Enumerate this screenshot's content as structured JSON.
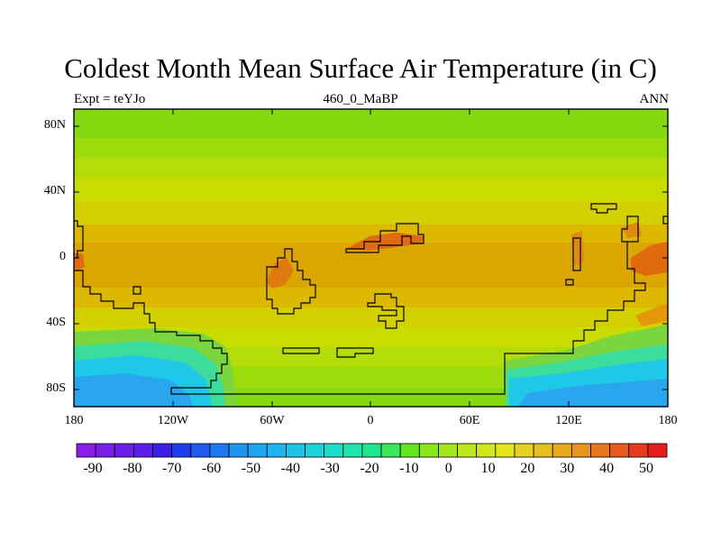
{
  "title": "Coldest Month Mean Surface Air Temperature (in C)",
  "subtitle_left": "Expt = teYJo",
  "subtitle_center": "460_0_MaBP",
  "subtitle_right": "ANN",
  "lat_labels": [
    "80N",
    "40N",
    "0",
    "40S",
    "80S"
  ],
  "lon_labels": [
    "180",
    "120W",
    "60W",
    "0",
    "60E",
    "120E",
    "180"
  ],
  "colorbar": {
    "labels": [
      "-90",
      "-80",
      "-70",
      "-60",
      "-50",
      "-40",
      "-30",
      "-20",
      "-10",
      "0",
      "10",
      "20",
      "30",
      "40",
      "50"
    ],
    "colors": [
      "#8a1ee6",
      "#7a1ee6",
      "#6a1ee6",
      "#5a1ee6",
      "#3c1ee6",
      "#1e3cf0",
      "#1e5af0",
      "#1e78f0",
      "#1e96f0",
      "#1ea5f0",
      "#1eb4f0",
      "#1ec3e6",
      "#1ed2dc",
      "#1edcc8",
      "#1ee6aa",
      "#1ee68c",
      "#3ce65a",
      "#64e61e",
      "#8ce61e",
      "#a5e61e",
      "#bee61e",
      "#d2e61e",
      "#e6e61e",
      "#e6d21e",
      "#e6be1e",
      "#e6aa1e",
      "#e6961e",
      "#e6781e",
      "#e65a1e",
      "#e63c1e",
      "#e61e1e"
    ]
  },
  "colors": {
    "polar_green": "#86d910",
    "midlat_yellowgreen": "#b8dc0a",
    "subtropic_yellow": "#d4dc00",
    "tropic_gold": "#dcb400",
    "equator_orange": "#dca000",
    "hot_orange": "#e06a10",
    "south_cyan": "#1ec8e6",
    "south_blue": "#2aa6ee",
    "coast_line": "#000000"
  }
}
